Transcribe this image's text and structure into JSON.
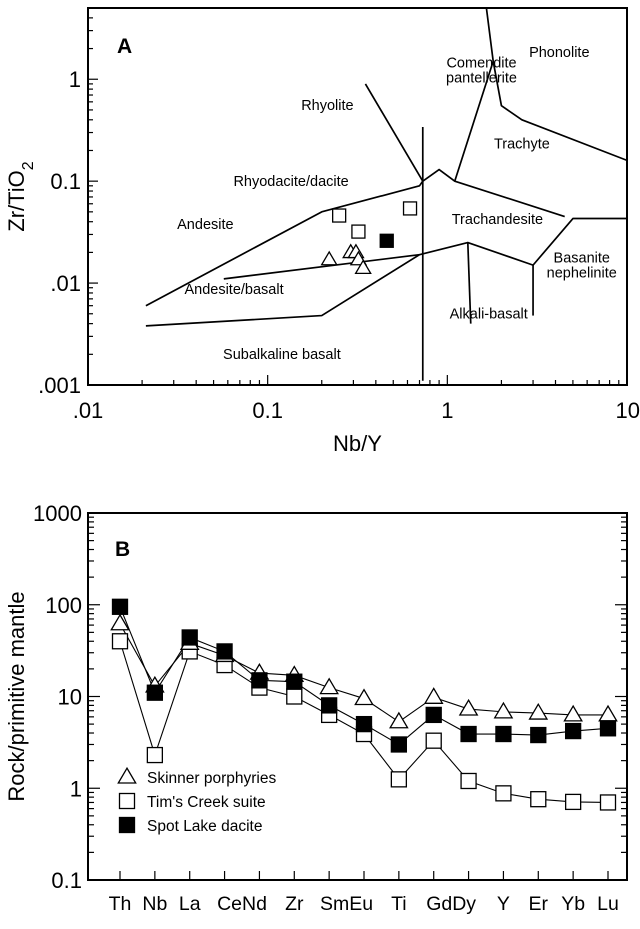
{
  "chart_data": [
    {
      "type": "scatter",
      "panel_label": "A",
      "xlabel": "Nb/Y",
      "ylabel": "Zr/TiO2",
      "xscale": "log",
      "yscale": "log",
      "xlim": [
        0.01,
        10
      ],
      "ylim": [
        0.001,
        5
      ],
      "x_tick_labels": [
        ".01",
        "0.1",
        "1",
        "10"
      ],
      "y_tick_labels": [
        ".001",
        ".01",
        "0.1",
        "1"
      ],
      "fields": [
        {
          "name": "Comendite pantellerite",
          "lines": [
            "Comendite",
            "pantellerite"
          ],
          "x": 1.55,
          "y": 1.3
        },
        {
          "name": "Phonolite",
          "lines": [
            "Phonolite"
          ],
          "x": 4.2,
          "y": 1.65
        },
        {
          "name": "Rhyolite",
          "lines": [
            "Rhyolite"
          ],
          "x": 0.215,
          "y": 0.5
        },
        {
          "name": "Trachyte",
          "lines": [
            "Trachyte"
          ],
          "x": 2.6,
          "y": 0.21
        },
        {
          "name": "Rhyodacite/dacite",
          "lines": [
            "Rhyodacite/dacite"
          ],
          "x": 0.135,
          "y": 0.09
        },
        {
          "name": "Trachandesite",
          "lines": [
            "Trachandesite"
          ],
          "x": 1.9,
          "y": 0.038
        },
        {
          "name": "Andesite",
          "lines": [
            "Andesite"
          ],
          "x": 0.045,
          "y": 0.034
        },
        {
          "name": "Basanite nephelinite",
          "lines": [
            "Basanite",
            "nephelinite"
          ],
          "x": 5.6,
          "y": 0.016
        },
        {
          "name": "Andesite/basalt",
          "lines": [
            "Andesite/basalt"
          ],
          "x": 0.065,
          "y": 0.0078
        },
        {
          "name": "Alkali-basalt",
          "lines": [
            "Alkali-basalt"
          ],
          "x": 1.7,
          "y": 0.0045
        },
        {
          "name": "Subalkaline basalt",
          "lines": [
            "Subalkaline basalt"
          ],
          "x": 0.12,
          "y": 0.0018
        }
      ],
      "boundaries": [
        [
          [
            0.021,
            0.006
          ],
          [
            0.2,
            0.05
          ],
          [
            0.7,
            0.09
          ],
          [
            0.73,
            0.1
          ]
        ],
        [
          [
            0.021,
            0.0038
          ],
          [
            0.2,
            0.0048
          ],
          [
            0.7,
            0.019
          ],
          [
            1.3,
            0.025
          ],
          [
            3.0,
            0.015
          ],
          [
            5.0,
            0.043
          ],
          [
            10,
            0.043
          ]
        ],
        [
          [
            0.057,
            0.011
          ],
          [
            0.7,
            0.019
          ]
        ],
        [
          [
            0.35,
            0.9
          ],
          [
            0.73,
            0.1
          ],
          [
            0.73,
            0.0011
          ]
        ],
        [
          [
            0.73,
            0.1
          ],
          [
            0.73,
            0.34
          ]
        ],
        [
          [
            0.73,
            0.1
          ],
          [
            0.9,
            0.13
          ],
          [
            1.1,
            0.1
          ],
          [
            4.5,
            0.045
          ]
        ],
        [
          [
            1.1,
            0.1
          ],
          [
            1.8,
            1.5
          ],
          [
            1.65,
            5
          ]
        ],
        [
          [
            1.8,
            1.5
          ],
          [
            2.0,
            0.55
          ],
          [
            2.6,
            0.4
          ],
          [
            10,
            0.16
          ]
        ],
        [
          [
            3.0,
            0.015
          ],
          [
            3.0,
            0.0048
          ]
        ],
        [
          [
            1.3,
            0.025
          ],
          [
            1.35,
            0.004
          ]
        ]
      ],
      "series": [
        {
          "name": "Tim's Creek suite",
          "marker": "square-open",
          "points": [
            [
              0.25,
              0.046
            ],
            [
              0.32,
              0.032
            ],
            [
              0.62,
              0.054
            ]
          ]
        },
        {
          "name": "Spot Lake dacite",
          "marker": "square-filled",
          "points": [
            [
              0.46,
              0.026
            ]
          ]
        },
        {
          "name": "Skinner porphyries",
          "marker": "triangle-open",
          "points": [
            [
              0.29,
              0.02
            ],
            [
              0.31,
              0.02
            ],
            [
              0.22,
              0.017
            ],
            [
              0.32,
              0.017
            ],
            [
              0.34,
              0.014
            ]
          ]
        }
      ]
    },
    {
      "type": "line",
      "panel_label": "B",
      "ylabel": "Rock/primitive mantle",
      "yscale": "log",
      "ylim": [
        0.1,
        1000
      ],
      "y_tick_labels": [
        "0.1",
        "1",
        "10",
        "100",
        "1000"
      ],
      "categories": [
        "Th",
        "Nb",
        "La",
        "Ce",
        "Nd",
        "Zr",
        "Sm",
        "Eu",
        "Ti",
        "Gd",
        "Dy",
        "Y",
        "Er",
        "Yb",
        "Lu"
      ],
      "category_label_rows": [
        "Th",
        "Nb",
        "La",
        "CeNd",
        "Zr",
        "SmEu",
        "Ti",
        "GdDy",
        "Y",
        "Er",
        "Yb",
        "Lu"
      ],
      "legend_position": "bottom-left",
      "series": [
        {
          "name": "Skinner porphyries",
          "marker": "triangle-open",
          "values": [
            62,
            13,
            38,
            28,
            18,
            17,
            12.5,
            9.5,
            5.3,
            9.8,
            7.3,
            6.8,
            6.6,
            6.3,
            6.3
          ]
        },
        {
          "name": "Tim's Creek suite",
          "marker": "square-open",
          "values": [
            40,
            2.3,
            31,
            22,
            12.5,
            10,
            6.3,
            3.9,
            1.25,
            3.3,
            1.2,
            0.88,
            0.76,
            0.71,
            0.7
          ]
        },
        {
          "name": "Spot Lake dacite",
          "marker": "square-filled",
          "values": [
            95,
            11,
            44,
            31,
            15,
            14.5,
            8,
            5,
            3,
            6.3,
            3.9,
            3.9,
            3.8,
            4.2,
            4.5
          ]
        }
      ]
    }
  ]
}
